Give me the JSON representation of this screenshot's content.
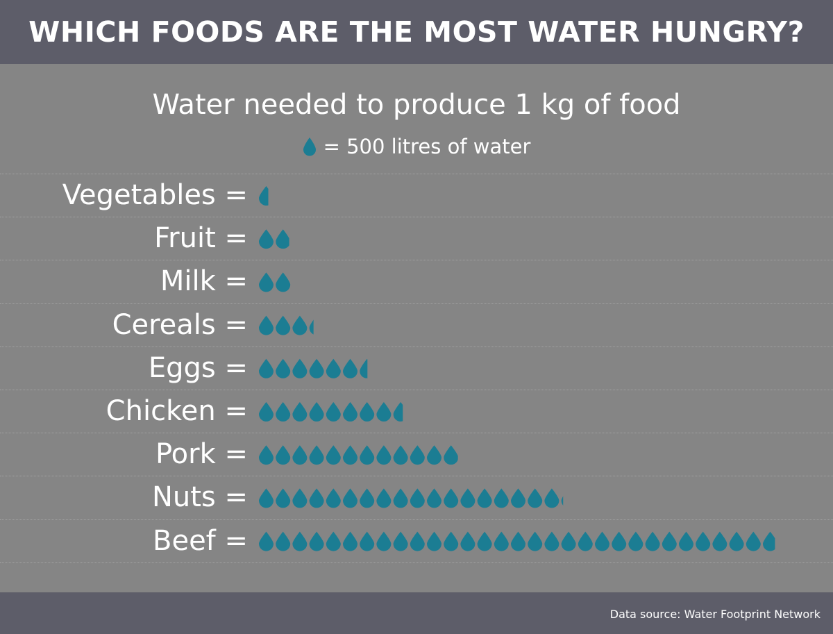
{
  "header": {
    "title": "WHICH FOODS ARE THE MOST WATER HUNGRY?"
  },
  "footer": {
    "source": "Data source: Water Footprint Network"
  },
  "colors": {
    "drop": "#1b7d93",
    "header_bg": "#5d5d69",
    "panel_bg": "#858585"
  },
  "chart_data": {
    "type": "pictogram",
    "title": "Water needed to produce 1 kg of food",
    "legend": {
      "icon": "water-drop-icon",
      "label": "= 500 litres of water",
      "unit_value": 500
    },
    "categories": [
      "Vegetables",
      "Fruit",
      "Milk",
      "Cereals",
      "Eggs",
      "Chicken",
      "Pork",
      "Nuts",
      "Beef"
    ],
    "label_suffix": " =",
    "values": [
      322,
      962,
      1020,
      1644,
      3265,
      4325,
      5988,
      9063,
      15415
    ],
    "units": "litres per kg"
  }
}
